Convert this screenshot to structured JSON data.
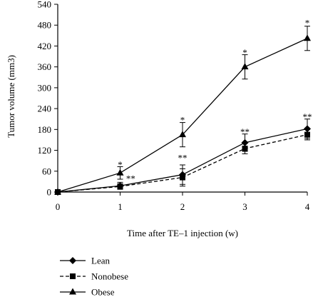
{
  "chart_data": {
    "type": "line",
    "title": "",
    "xlabel": "Time after TE–1 injection (w)",
    "ylabel": "Tumor volume (mm3)",
    "x": [
      0,
      1,
      2,
      3,
      4
    ],
    "xlim": [
      0,
      4
    ],
    "ylim": [
      0,
      540
    ],
    "xticks": [
      "0",
      "1",
      "2",
      "3",
      "4"
    ],
    "yticks": [
      "0",
      "60",
      "120",
      "180",
      "240",
      "300",
      "360",
      "420",
      "480",
      "540"
    ],
    "grid": false,
    "legend_position": "bottom-left",
    "series": [
      {
        "name": "Lean",
        "marker": "diamond",
        "line_style": "solid",
        "values": [
          0,
          18,
          50,
          142,
          182
        ],
        "errors": [
          0,
          10,
          28,
          25,
          28
        ]
      },
      {
        "name": "Nonobese",
        "marker": "square",
        "line_style": "dashed",
        "values": [
          0,
          16,
          42,
          125,
          165
        ],
        "errors": [
          0,
          8,
          25,
          15,
          15
        ]
      },
      {
        "name": "Obese",
        "marker": "triangle",
        "line_style": "solid",
        "values": [
          0,
          55,
          165,
          360,
          442
        ],
        "errors": [
          0,
          18,
          35,
          35,
          35
        ]
      }
    ],
    "annotations": [
      {
        "text": "*",
        "x": 1,
        "y": 80
      },
      {
        "text": "**",
        "x": 1.17,
        "y": 40
      },
      {
        "text": "*",
        "x": 2,
        "y": 208
      },
      {
        "text": "**",
        "x": 2,
        "y": 100
      },
      {
        "text": "*",
        "x": 3,
        "y": 402
      },
      {
        "text": "**",
        "x": 3,
        "y": 175
      },
      {
        "text": "*",
        "x": 4,
        "y": 488
      },
      {
        "text": "**",
        "x": 4,
        "y": 218
      }
    ]
  }
}
